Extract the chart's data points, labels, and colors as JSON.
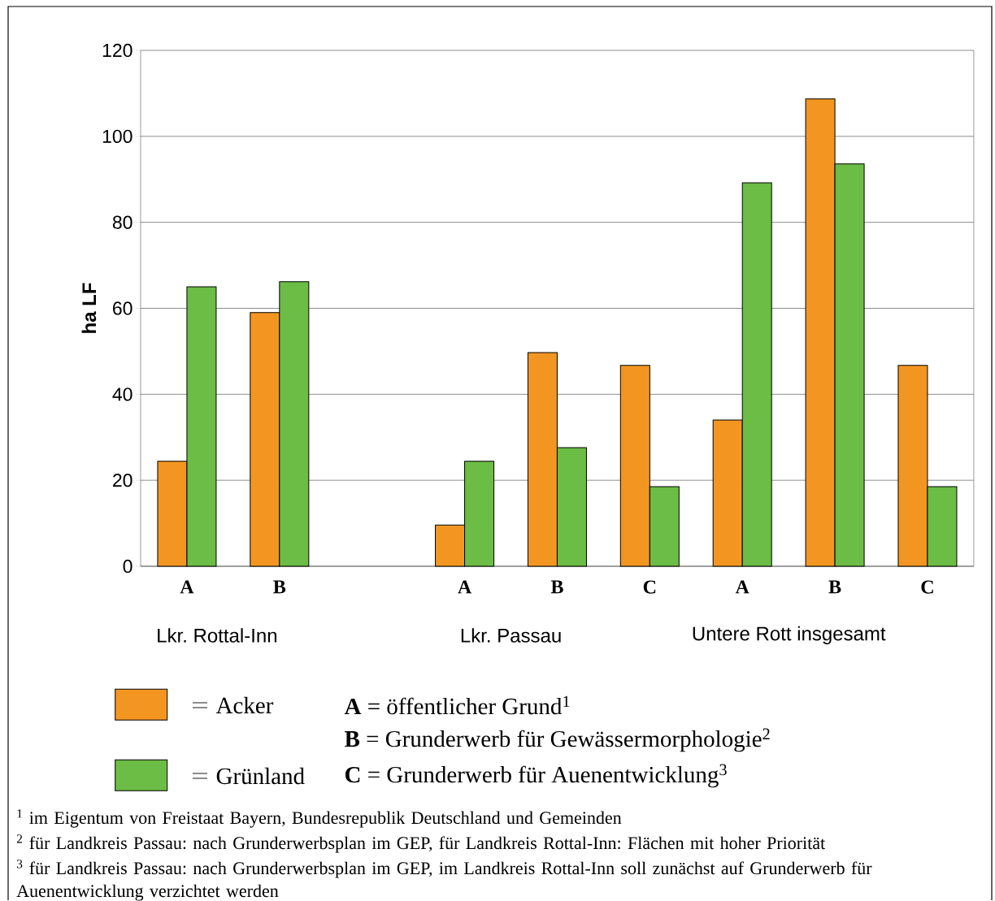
{
  "chart_data": {
    "type": "bar",
    "ylabel": "ha LF",
    "categories": [
      "A",
      "B",
      null,
      "A",
      "B",
      "C",
      "A",
      "B",
      "C"
    ],
    "series": [
      {
        "name": "Acker",
        "color": "#f39621",
        "values": [
          24.4,
          59.0,
          null,
          9.6,
          49.7,
          46.7,
          34.0,
          108.7,
          46.7
        ]
      },
      {
        "name": "Grünland",
        "color": "#6bbd45",
        "values": [
          65.0,
          66.2,
          null,
          24.4,
          27.6,
          18.5,
          89.2,
          93.6,
          18.5
        ]
      }
    ],
    "ylim": [
      0,
      120
    ],
    "yticks": [
      0,
      20,
      40,
      60,
      80,
      100,
      120
    ],
    "grid": "y",
    "legend": "bottom",
    "annotations": [
      "Lkr. Rottal-Inn",
      "Lkr. Passau",
      "Untere Rott insgesamt",
      "**A** = öffentlicher Grund$^{1}$",
      "**B** = Grunderwerb für Gewässermorphologie$^{2}$",
      "**C** = Grunderwerb für Auenentwicklung$^{3}$",
      "$^{1}$ im Eigentum von Freistaat Bayern, Bundesrepublik Deutschland und Gemeinden",
      "$^{2}$ für Landkreis Passau: nach Grunderwerbsplan im GEP, für Landkreis Rottal-Inn: Flächen mit hoher Priorität",
      "$^{3}$ für Landkreis Passau: nach Grunderwerbsplan im GEP, im Landkreis Rottal-Inn soll zunächst auf Grunderwerb für Auenentwicklung verzichtet werden"
    ]
  }
}
